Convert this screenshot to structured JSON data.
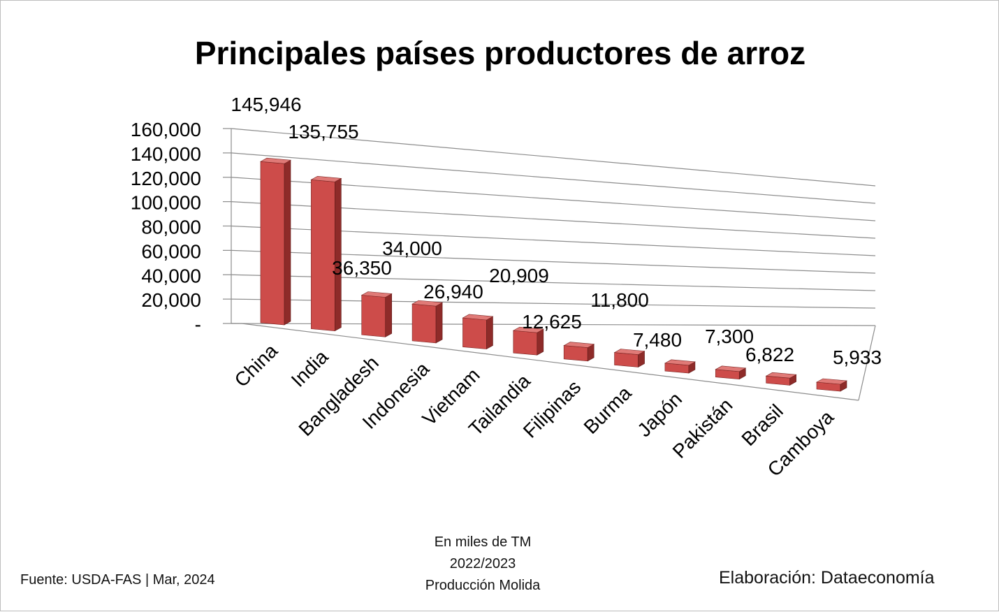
{
  "title": "Principales países productores de arroz",
  "notes": {
    "line1": "En miles de TM",
    "line2": "2022/2023",
    "line3": "Producción Molida"
  },
  "source": "Fuente:  USDA-FAS | Mar, 2024",
  "credit": "Elaboración: Dataeconomía",
  "colors": {
    "bar_front": "#cd4c4a",
    "bar_side": "#8e2b29",
    "bar_top": "#e07a77",
    "grid": "#8c8c8c"
  },
  "chart_data": {
    "type": "bar",
    "title": "Principales países productores de arroz",
    "categories": [
      "China",
      "India",
      "Bangladesh",
      "Indonesia",
      "Vietnam",
      "Tailandia",
      "Filipinas",
      "Burma",
      "Japón",
      "Pakistán",
      "Brasil",
      "Camboya"
    ],
    "values": [
      145946,
      135755,
      36350,
      34000,
      26940,
      20909,
      12625,
      11800,
      7480,
      7300,
      6822,
      5933
    ],
    "value_labels": [
      "145,946",
      "135,755",
      "36,350",
      "34,000",
      "26,940",
      "20,909",
      "12,625",
      "11,800",
      "7,480",
      "7,300",
      "6,822",
      "5,933"
    ],
    "y_ticks": [
      "-",
      "20,000",
      "40,000",
      "60,000",
      "80,000",
      "100,000",
      "120,000",
      "140,000",
      "160,000"
    ],
    "ylim": [
      0,
      160000
    ],
    "grid": true,
    "style": "3d-column"
  }
}
